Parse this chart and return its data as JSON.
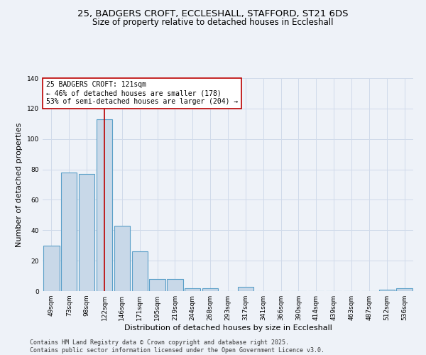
{
  "title_line1": "25, BADGERS CROFT, ECCLESHALL, STAFFORD, ST21 6DS",
  "title_line2": "Size of property relative to detached houses in Eccleshall",
  "xlabel": "Distribution of detached houses by size in Eccleshall",
  "ylabel": "Number of detached properties",
  "categories": [
    "49sqm",
    "73sqm",
    "98sqm",
    "122sqm",
    "146sqm",
    "171sqm",
    "195sqm",
    "219sqm",
    "244sqm",
    "268sqm",
    "293sqm",
    "317sqm",
    "341sqm",
    "366sqm",
    "390sqm",
    "414sqm",
    "439sqm",
    "463sqm",
    "487sqm",
    "512sqm",
    "536sqm"
  ],
  "values": [
    30,
    78,
    77,
    113,
    43,
    26,
    8,
    8,
    2,
    2,
    0,
    3,
    0,
    0,
    0,
    0,
    0,
    0,
    0,
    1,
    2
  ],
  "bar_color": "#c8d8e8",
  "bar_edge_color": "#5a9fc8",
  "bar_edge_width": 0.8,
  "grid_color": "#d0daea",
  "bg_color": "#eef2f8",
  "ylim": [
    0,
    140
  ],
  "yticks": [
    0,
    20,
    40,
    60,
    80,
    100,
    120,
    140
  ],
  "annotation_text": "25 BADGERS CROFT: 121sqm\n← 46% of detached houses are smaller (178)\n53% of semi-detached houses are larger (204) →",
  "vline_x_index": 3,
  "vline_color": "#bb0000",
  "annotation_box_color": "#ffffff",
  "annotation_box_edge": "#bb0000",
  "footer_line1": "Contains HM Land Registry data © Crown copyright and database right 2025.",
  "footer_line2": "Contains public sector information licensed under the Open Government Licence v3.0.",
  "title_fontsize": 9.5,
  "subtitle_fontsize": 8.5,
  "axis_label_fontsize": 8,
  "tick_fontsize": 6.5,
  "annotation_fontsize": 7,
  "footer_fontsize": 6
}
